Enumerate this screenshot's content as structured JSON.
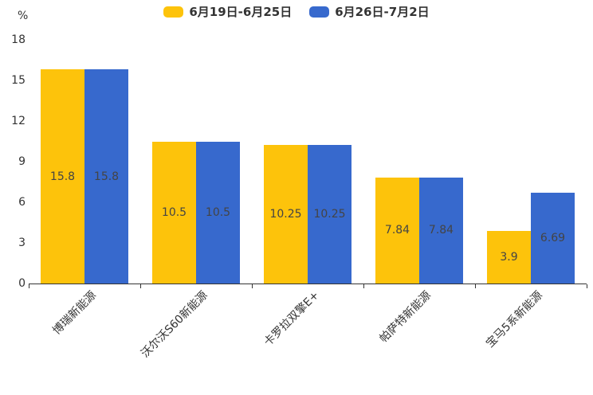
{
  "chart_data": {
    "type": "bar",
    "title": "",
    "categories": [
      "博瑞新能源",
      "沃尔沃S60新能源",
      "卡罗拉双擎E+",
      "帕萨特新能源",
      "宝马5系新能源"
    ],
    "series": [
      {
        "name": "6月19日-6月25日",
        "color": "#FDC30B",
        "values": [
          15.8,
          10.5,
          10.25,
          7.84,
          3.9
        ]
      },
      {
        "name": "6月26日-7月2日",
        "color": "#3769CD",
        "values": [
          15.8,
          10.5,
          10.25,
          7.84,
          6.69
        ]
      }
    ],
    "value_labels": [
      "15.8",
      "10.5",
      "10.25",
      "7.84",
      "3.9",
      "15.8",
      "10.5",
      "10.25",
      "7.84",
      "6.69"
    ],
    "xlabel": "",
    "ylabel": "%",
    "ylim": [
      0,
      18
    ],
    "yticks": [
      0,
      3,
      6,
      9,
      12,
      15,
      18
    ],
    "grid": false,
    "legend_position": "top-center",
    "value_label_position": "inside-center",
    "axis_color": "#333333",
    "text_color": "#333333",
    "value_label_color": "#444444"
  }
}
